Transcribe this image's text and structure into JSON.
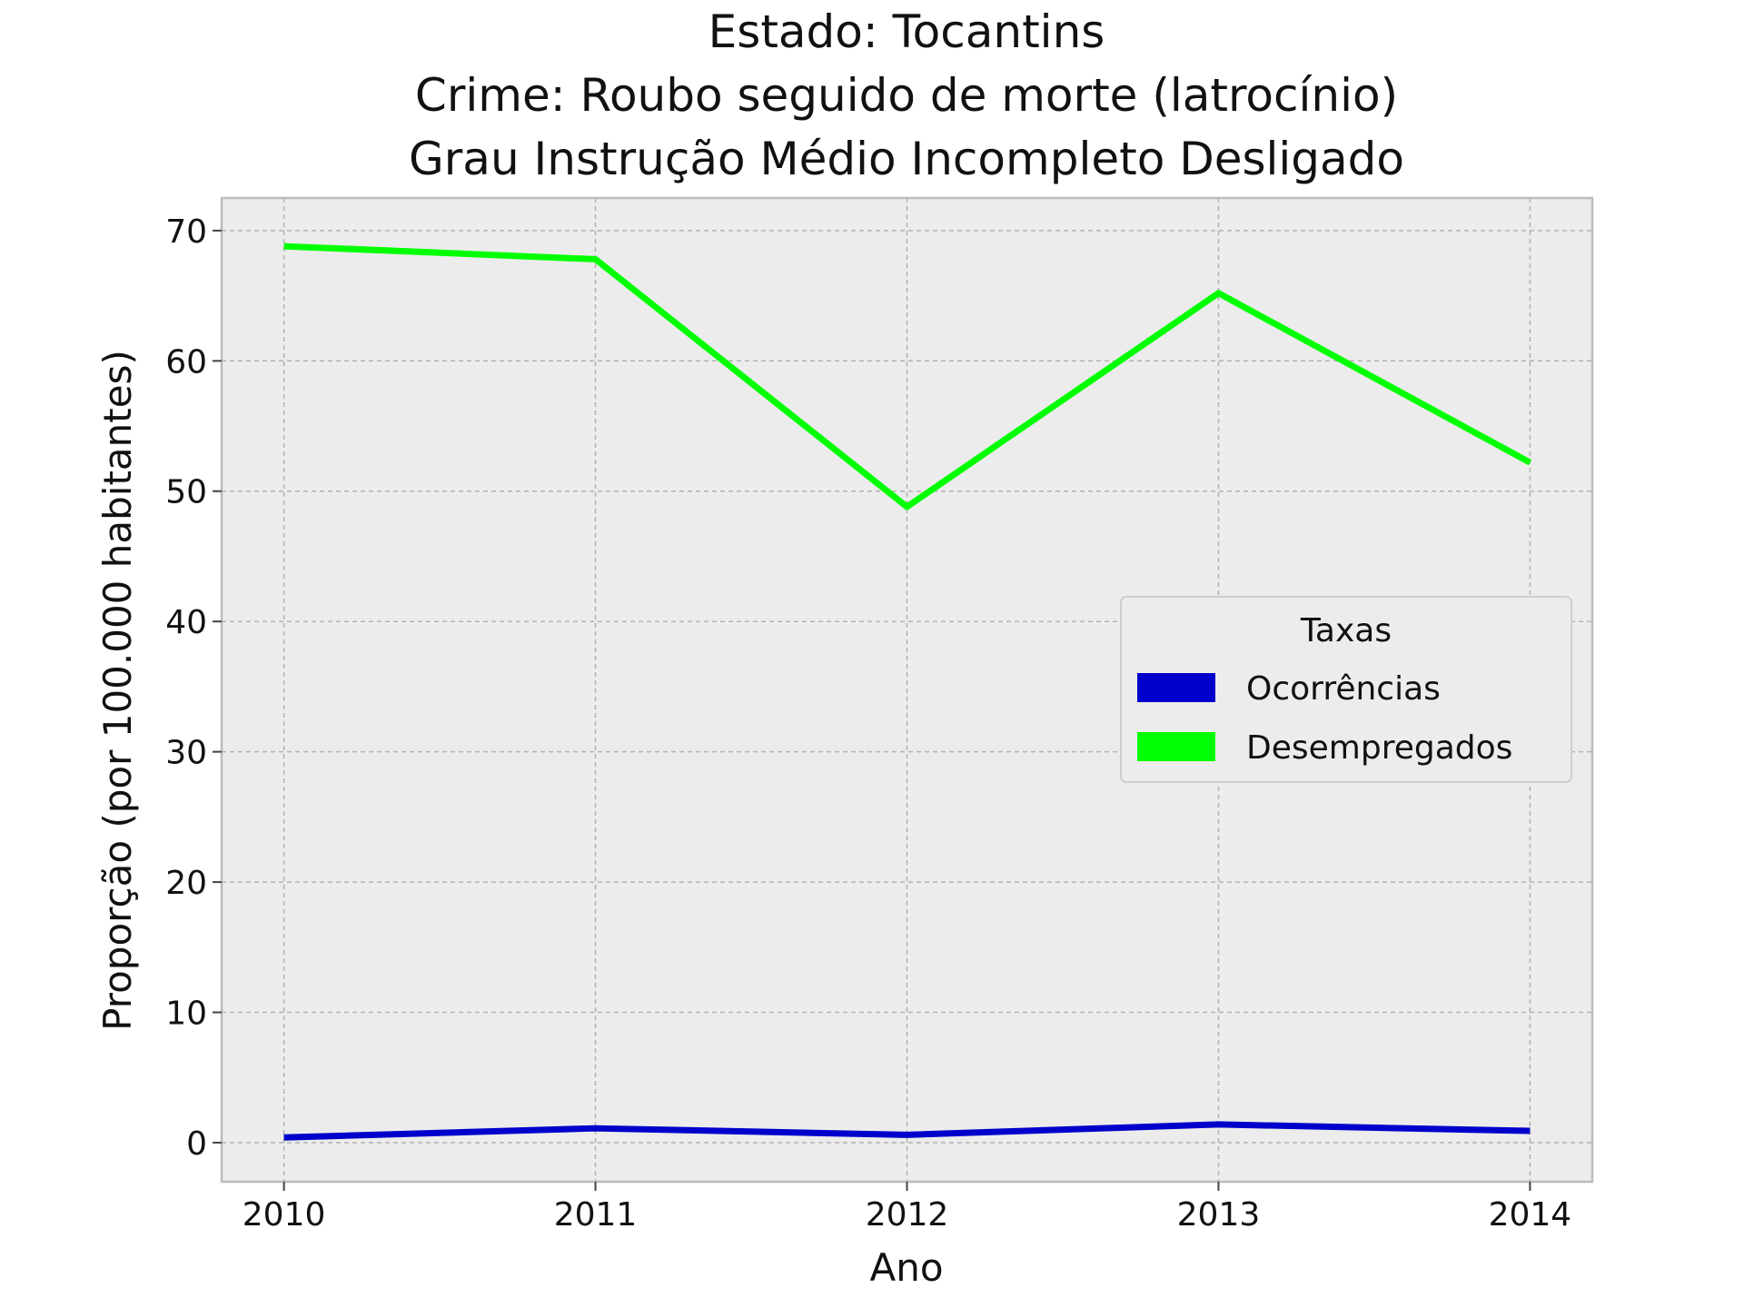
{
  "chart_data": {
    "type": "line",
    "title_lines": [
      "Estado: Tocantins",
      "Crime: Roubo seguido de morte (latrocínio)",
      "Grau Instrução  Médio Incompleto   Desligado"
    ],
    "xlabel": "Ano",
    "ylabel": "Proporção (por 100.000 habitantes)",
    "x": [
      2010,
      2011,
      2012,
      2013,
      2014
    ],
    "x_tick_labels": [
      "2010",
      "2011",
      "2012",
      "2013",
      "2014"
    ],
    "xlim": [
      2009.8,
      2014.2
    ],
    "ylim": [
      -3,
      72.5
    ],
    "y_ticks": [
      0,
      10,
      20,
      30,
      40,
      50,
      60,
      70
    ],
    "y_tick_labels": [
      "0",
      "10",
      "20",
      "30",
      "40",
      "50",
      "60",
      "70"
    ],
    "grid": true,
    "legend": {
      "title": "Taxas",
      "placement": "center-right"
    },
    "series": [
      {
        "name": "Ocorrências",
        "color": "#0000cc",
        "values": [
          0.4,
          1.1,
          0.6,
          1.4,
          0.9
        ]
      },
      {
        "name": "Desempregados",
        "color": "#00ff00",
        "values": [
          68.8,
          67.8,
          48.8,
          65.2,
          52.2
        ]
      }
    ]
  }
}
